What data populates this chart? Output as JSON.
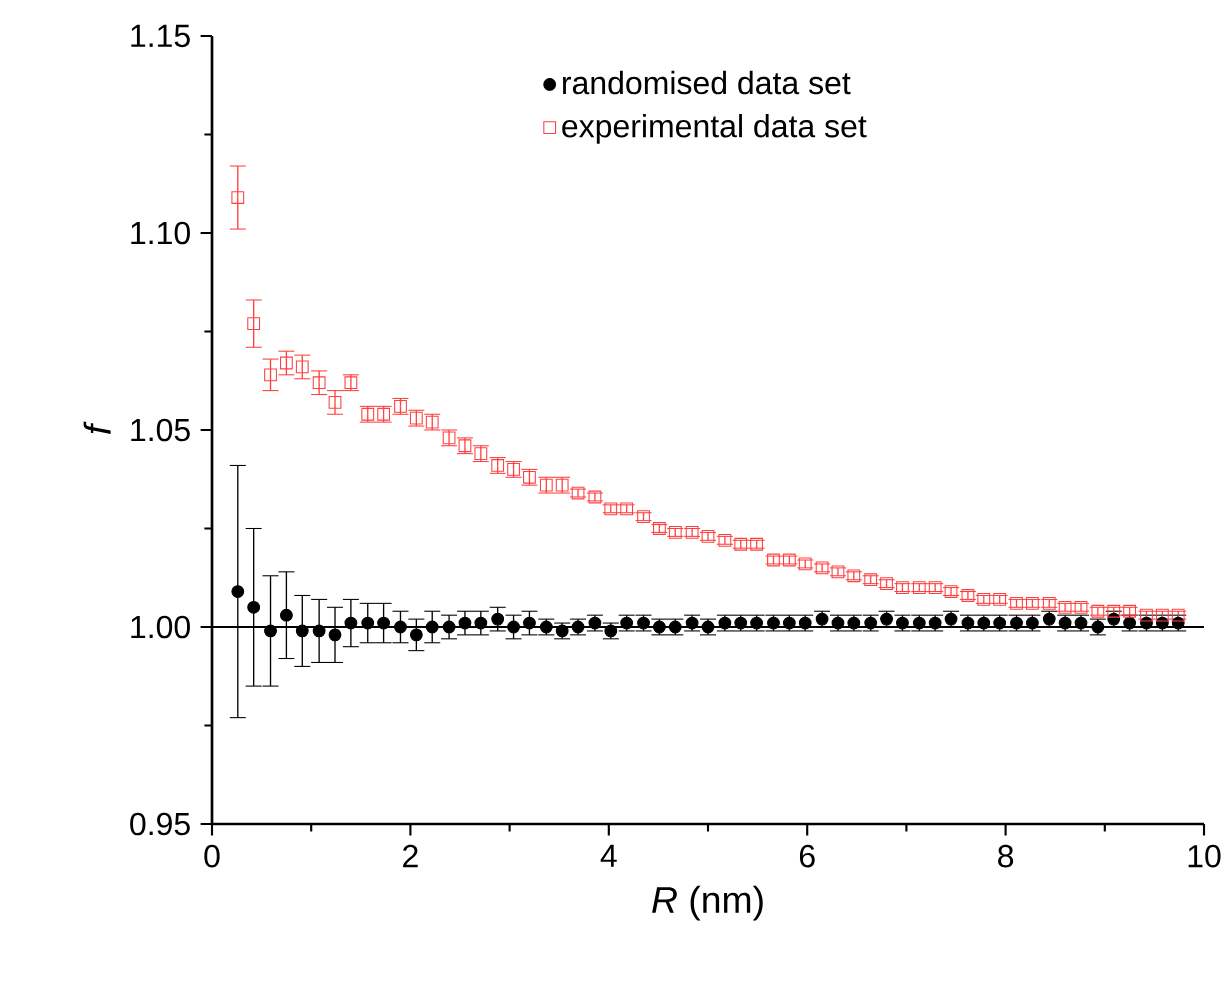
{
  "chart_data": {
    "type": "scatter",
    "xlabel": "*R* (nm)",
    "ylabel": "f",
    "xlim": [
      0,
      10
    ],
    "ylim": [
      0.95,
      1.15
    ],
    "xticks": [
      0,
      2,
      4,
      6,
      8,
      10
    ],
    "yticks": [
      {
        "value": 0.95,
        "label": "0.95"
      },
      {
        "value": 1.0,
        "label": "1.00"
      },
      {
        "value": 1.05,
        "label": "1.05"
      },
      {
        "value": 1.1,
        "label": "1.10"
      },
      {
        "value": 1.15,
        "label": "1.15"
      }
    ],
    "legend": "top",
    "grid": false,
    "ref_lines": [
      {
        "axis": "y",
        "value": 1.0,
        "color": "#000000"
      }
    ],
    "x": [
      0.26,
      0.42,
      0.59,
      0.75,
      0.91,
      1.08,
      1.24,
      1.4,
      1.57,
      1.73,
      1.9,
      2.06,
      2.22,
      2.39,
      2.55,
      2.71,
      2.88,
      3.04,
      3.2,
      3.37,
      3.53,
      3.69,
      3.86,
      4.02,
      4.18,
      4.35,
      4.51,
      4.67,
      4.84,
      5.0,
      5.17,
      5.33,
      5.49,
      5.66,
      5.82,
      5.98,
      6.15,
      6.31,
      6.47,
      6.64,
      6.8,
      6.96,
      7.13,
      7.29,
      7.45,
      7.62,
      7.78,
      7.94,
      8.11,
      8.27,
      8.44,
      8.6,
      8.76,
      8.93,
      9.09,
      9.25,
      9.42,
      9.58,
      9.74
    ],
    "series": [
      {
        "name": "randomised data set",
        "color": "#000000",
        "marker": "circle",
        "values": [
          1.009,
          1.005,
          0.999,
          1.003,
          0.999,
          0.999,
          0.998,
          1.001,
          1.001,
          1.001,
          1.0,
          0.998,
          1.0,
          1.0,
          1.001,
          1.001,
          1.002,
          1.0,
          1.001,
          1.0,
          0.999,
          1.0,
          1.001,
          0.999,
          1.001,
          1.001,
          1.0,
          1.0,
          1.001,
          1.0,
          1.001,
          1.001,
          1.001,
          1.001,
          1.001,
          1.001,
          1.002,
          1.001,
          1.001,
          1.001,
          1.002,
          1.001,
          1.001,
          1.001,
          1.002,
          1.001,
          1.001,
          1.001,
          1.001,
          1.001,
          1.002,
          1.001,
          1.001,
          1.0,
          1.002,
          1.001,
          1.001,
          1.001,
          1.001
        ],
        "errors": [
          0.032,
          0.02,
          0.014,
          0.011,
          0.009,
          0.008,
          0.007,
          0.006,
          0.005,
          0.005,
          0.004,
          0.004,
          0.004,
          0.003,
          0.003,
          0.003,
          0.003,
          0.003,
          0.003,
          0.002,
          0.002,
          0.002,
          0.002,
          0.002,
          0.002,
          0.002,
          0.002,
          0.002,
          0.002,
          0.002,
          0.002,
          0.002,
          0.002,
          0.002,
          0.002,
          0.002,
          0.002,
          0.002,
          0.002,
          0.002,
          0.002,
          0.002,
          0.002,
          0.002,
          0.002,
          0.002,
          0.002,
          0.002,
          0.002,
          0.002,
          0.002,
          0.002,
          0.002,
          0.002,
          0.002,
          0.002,
          0.002,
          0.002,
          0.002
        ]
      },
      {
        "name": "experimental data set",
        "color": "#ff4040",
        "marker": "square",
        "values": [
          1.109,
          1.077,
          1.064,
          1.067,
          1.066,
          1.062,
          1.057,
          1.062,
          1.054,
          1.054,
          1.056,
          1.053,
          1.052,
          1.048,
          1.046,
          1.044,
          1.041,
          1.04,
          1.038,
          1.036,
          1.036,
          1.034,
          1.033,
          1.03,
          1.03,
          1.028,
          1.025,
          1.024,
          1.024,
          1.023,
          1.022,
          1.021,
          1.021,
          1.017,
          1.017,
          1.016,
          1.015,
          1.014,
          1.013,
          1.012,
          1.011,
          1.01,
          1.01,
          1.01,
          1.009,
          1.008,
          1.007,
          1.007,
          1.006,
          1.006,
          1.006,
          1.005,
          1.005,
          1.004,
          1.004,
          1.004,
          1.003,
          1.003,
          1.003
        ],
        "errors": [
          0.008,
          0.006,
          0.004,
          0.003,
          0.003,
          0.003,
          0.003,
          0.002,
          0.002,
          0.002,
          0.002,
          0.002,
          0.002,
          0.002,
          0.002,
          0.002,
          0.002,
          0.002,
          0.002,
          0.002,
          0.002,
          0.001,
          0.001,
          0.001,
          0.001,
          0.001,
          0.001,
          0.001,
          0.001,
          0.001,
          0.001,
          0.001,
          0.001,
          0.001,
          0.001,
          0.001,
          0.001,
          0.001,
          0.001,
          0.001,
          0.001,
          0.001,
          0.001,
          0.001,
          0.001,
          0.001,
          0.001,
          0.001,
          0.001,
          0.001,
          0.001,
          0.001,
          0.001,
          0.001,
          0.001,
          0.001,
          0.001,
          0.001,
          0.001
        ]
      }
    ]
  }
}
